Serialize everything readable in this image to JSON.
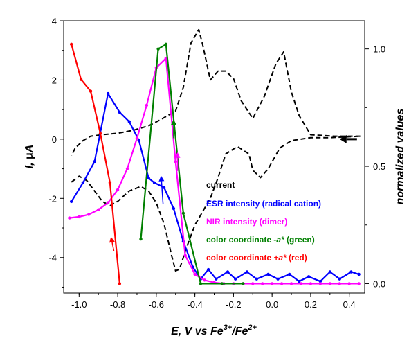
{
  "chart_data": {
    "type": "line",
    "x_label_parts": {
      "e": "E,",
      "v": " V",
      "vs": " vs ",
      "fe3": "Fe",
      "sup3": "3+",
      "slash": "/Fe",
      "sup2": "2+"
    },
    "y_label_left_parts": {
      "i": "I,",
      "mu": " μ",
      "a": "A"
    },
    "y_label_right": "normalized values",
    "xlim": [
      -1.08,
      0.48
    ],
    "ylim_left": [
      -5.2,
      4.0
    ],
    "ylim_right": [
      -0.04,
      1.12
    ],
    "x_ticks": [
      "-1.0",
      "-0.8",
      "-0.6",
      "-0.4",
      "-0.2",
      "0.0",
      "0.2",
      "0.4"
    ],
    "x_tick_values": [
      -1.0,
      -0.8,
      -0.6,
      -0.4,
      -0.2,
      0.0,
      0.2,
      0.4
    ],
    "y_left_ticks": [
      "4",
      "2",
      "0",
      "-2",
      "-4"
    ],
    "y_left_tick_values": [
      4,
      2,
      0,
      -2,
      -4
    ],
    "y_right_ticks": [
      "1.0",
      "0.5",
      "0.0"
    ],
    "y_right_tick_values": [
      1.0,
      0.5,
      0.0
    ],
    "legend": {
      "current": "current",
      "esr": "ESR intensity (radical cation)",
      "nir": "NIR intensity (dimer)",
      "green_prefix": "color coordinate ",
      "green_var": "-a*",
      "green_suffix": " (green)",
      "red_prefix": "color coordinate ",
      "red_var": "+a*",
      "red_suffix": " (red)"
    },
    "series": [
      {
        "key": "current",
        "axis": "left",
        "color": "#000000",
        "dashed": true,
        "markers": false,
        "points": [
          [
            -1.04,
            -1.45
          ],
          [
            -1.0,
            -1.25
          ],
          [
            -0.96,
            -1.4
          ],
          [
            -0.92,
            -1.75
          ],
          [
            -0.88,
            -2.1
          ],
          [
            -0.84,
            -2.25
          ],
          [
            -0.8,
            -2.1
          ],
          [
            -0.74,
            -1.75
          ],
          [
            -0.68,
            -1.6
          ],
          [
            -0.64,
            -1.75
          ],
          [
            -0.6,
            -2.15
          ],
          [
            -0.56,
            -2.85
          ],
          [
            -0.52,
            -3.95
          ],
          [
            -0.5,
            -4.45
          ],
          [
            -0.48,
            -4.4
          ],
          [
            -0.44,
            -3.6
          ],
          [
            -0.4,
            -2.9
          ],
          [
            -0.36,
            -2.45
          ],
          [
            -0.32,
            -2.0
          ],
          [
            -0.28,
            -1.3
          ],
          [
            -0.24,
            -0.5
          ],
          [
            -0.18,
            -0.25
          ],
          [
            -0.12,
            -0.5
          ],
          [
            -0.1,
            -1.05
          ],
          [
            -0.06,
            -1.3
          ],
          [
            -0.02,
            -1.0
          ],
          [
            0.04,
            -0.3
          ],
          [
            0.1,
            -0.05
          ],
          [
            0.2,
            0.05
          ],
          [
            0.3,
            0.05
          ],
          [
            0.46,
            0.1
          ],
          [
            0.32,
            0.1
          ],
          [
            0.2,
            0.15
          ],
          [
            0.14,
            0.8
          ],
          [
            0.1,
            1.6
          ],
          [
            0.06,
            2.95
          ],
          [
            0.02,
            2.55
          ],
          [
            -0.04,
            1.45
          ],
          [
            -0.1,
            0.7
          ],
          [
            -0.16,
            1.3
          ],
          [
            -0.2,
            2.05
          ],
          [
            -0.24,
            2.3
          ],
          [
            -0.28,
            2.3
          ],
          [
            -0.32,
            2.0
          ],
          [
            -0.36,
            3.2
          ],
          [
            -0.38,
            3.7
          ],
          [
            -0.42,
            3.25
          ],
          [
            -0.46,
            1.75
          ],
          [
            -0.5,
            0.95
          ],
          [
            -0.54,
            0.8
          ],
          [
            -0.58,
            0.65
          ],
          [
            -0.64,
            0.45
          ],
          [
            -0.72,
            0.3
          ],
          [
            -0.8,
            0.2
          ],
          [
            -0.88,
            0.15
          ],
          [
            -0.94,
            0.1
          ],
          [
            -0.98,
            -0.05
          ],
          [
            -1.02,
            -0.3
          ],
          [
            -1.04,
            -0.55
          ]
        ]
      },
      {
        "key": "esr",
        "axis": "right",
        "color": "#0000ff",
        "dashed": false,
        "markers": true,
        "points": [
          [
            -1.04,
            0.35
          ],
          [
            -0.98,
            0.43
          ],
          [
            -0.92,
            0.52
          ],
          [
            -0.85,
            0.81
          ],
          [
            -0.79,
            0.73
          ],
          [
            -0.74,
            0.69
          ],
          [
            -0.69,
            0.61
          ],
          [
            -0.64,
            0.45
          ],
          [
            -0.61,
            0.43
          ],
          [
            -0.56,
            0.41
          ],
          [
            -0.51,
            0.32
          ],
          [
            -0.46,
            0.18
          ],
          [
            -0.41,
            0.07
          ],
          [
            -0.37,
            0.02
          ],
          [
            -0.33,
            0.06
          ],
          [
            -0.29,
            0.02
          ],
          [
            -0.23,
            0.05
          ],
          [
            -0.19,
            0.02
          ],
          [
            -0.13,
            0.05
          ],
          [
            -0.08,
            0.02
          ],
          [
            -0.02,
            0.04
          ],
          [
            0.03,
            0.02
          ],
          [
            0.09,
            0.04
          ],
          [
            0.14,
            0.01
          ],
          [
            0.19,
            0.03
          ],
          [
            0.25,
            0.01
          ],
          [
            0.3,
            0.05
          ],
          [
            0.35,
            0.02
          ],
          [
            0.41,
            0.05
          ],
          [
            0.45,
            0.04
          ]
        ]
      },
      {
        "key": "nir",
        "axis": "right",
        "color": "#ff00ff",
        "dashed": false,
        "markers": true,
        "points": [
          [
            -1.05,
            0.28
          ],
          [
            -1.0,
            0.285
          ],
          [
            -0.95,
            0.295
          ],
          [
            -0.9,
            0.315
          ],
          [
            -0.85,
            0.345
          ],
          [
            -0.8,
            0.4
          ],
          [
            -0.75,
            0.49
          ],
          [
            -0.7,
            0.62
          ],
          [
            -0.65,
            0.76
          ],
          [
            -0.6,
            0.92
          ],
          [
            -0.55,
            0.96
          ],
          [
            -0.5,
            0.52
          ],
          [
            -0.45,
            0.12
          ],
          [
            -0.4,
            0.04
          ],
          [
            -0.35,
            0.015
          ],
          [
            -0.3,
            0.005
          ],
          [
            -0.25,
            0.0
          ],
          [
            -0.2,
            0.0
          ],
          [
            -0.15,
            0.0
          ],
          [
            -0.1,
            0.0
          ],
          [
            -0.05,
            0.0
          ],
          [
            0.0,
            0.0
          ],
          [
            0.05,
            0.0
          ],
          [
            0.1,
            0.0
          ],
          [
            0.15,
            0.0
          ],
          [
            0.2,
            0.0
          ],
          [
            0.25,
            0.0
          ],
          [
            0.3,
            0.0
          ],
          [
            0.35,
            0.0
          ],
          [
            0.4,
            0.0
          ],
          [
            0.45,
            0.0
          ]
        ]
      },
      {
        "key": "green",
        "axis": "right",
        "color": "#008000",
        "dashed": false,
        "markers": true,
        "points": [
          [
            -0.68,
            0.19
          ],
          [
            -0.59,
            1.0
          ],
          [
            -0.55,
            1.02
          ],
          [
            -0.46,
            0.3
          ],
          [
            -0.37,
            0.0
          ],
          [
            -0.26,
            0.0
          ],
          [
            -0.15,
            0.0
          ]
        ]
      },
      {
        "key": "red",
        "axis": "right",
        "color": "#ff0000",
        "dashed": false,
        "markers": true,
        "points": [
          [
            -1.04,
            1.02
          ],
          [
            -0.99,
            0.87
          ],
          [
            -0.94,
            0.82
          ],
          [
            -0.89,
            0.64
          ],
          [
            -0.84,
            0.43
          ],
          [
            -0.79,
            0.0
          ]
        ]
      }
    ]
  }
}
